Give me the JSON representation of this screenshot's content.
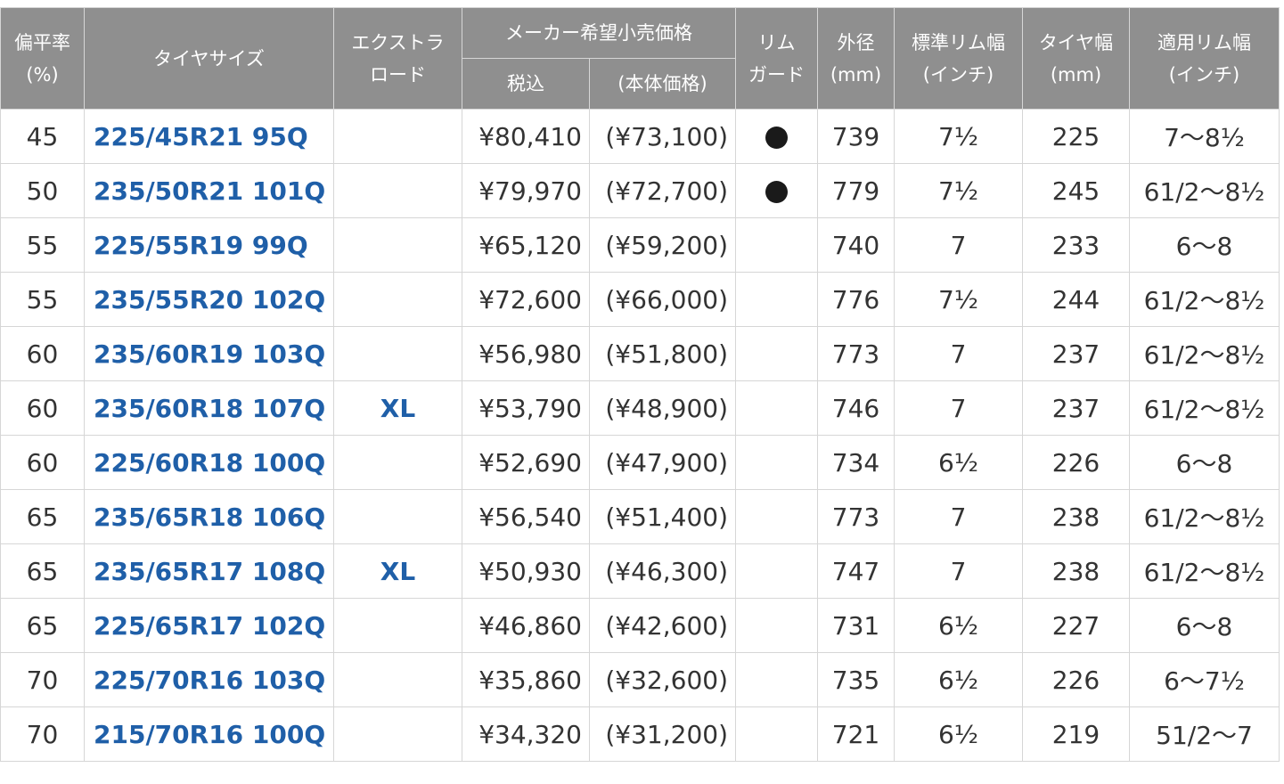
{
  "header": {
    "aspect_ratio": [
      "偏平率",
      "(%)"
    ],
    "tire_size": "タイヤサイズ",
    "extra_load": [
      "エクストラ",
      "ロード"
    ],
    "msrp": "メーカー希望小売価格",
    "tax_incl": "税込",
    "base_price": "(本体価格)",
    "rim_guard": [
      "リム",
      "ガード"
    ],
    "outer_diameter": [
      "外径",
      "(mm)"
    ],
    "std_rim_width": [
      "標準リム幅",
      "(インチ)"
    ],
    "tire_width": [
      "タイヤ幅",
      "(mm)"
    ],
    "applicable_rim_width": [
      "適用リム幅",
      "(インチ)"
    ]
  },
  "rows": [
    {
      "ratio": "45",
      "size": "225/45R21 95Q",
      "xl": "",
      "price": "¥80,410",
      "base": "(¥73,100)",
      "rim_guard": true,
      "diameter": "739",
      "std_rim": "7½",
      "width": "225",
      "rim_range": "7〜8½"
    },
    {
      "ratio": "50",
      "size": "235/50R21 101Q",
      "xl": "",
      "price": "¥79,970",
      "base": "(¥72,700)",
      "rim_guard": true,
      "diameter": "779",
      "std_rim": "7½",
      "width": "245",
      "rim_range": "61/2〜8½"
    },
    {
      "ratio": "55",
      "size": "225/55R19 99Q",
      "xl": "",
      "price": "¥65,120",
      "base": "(¥59,200)",
      "rim_guard": false,
      "diameter": "740",
      "std_rim": "7",
      "width": "233",
      "rim_range": "6〜8"
    },
    {
      "ratio": "55",
      "size": "235/55R20 102Q",
      "xl": "",
      "price": "¥72,600",
      "base": "(¥66,000)",
      "rim_guard": false,
      "diameter": "776",
      "std_rim": "7½",
      "width": "244",
      "rim_range": "61/2〜8½"
    },
    {
      "ratio": "60",
      "size": "235/60R19 103Q",
      "xl": "",
      "price": "¥56,980",
      "base": "(¥51,800)",
      "rim_guard": false,
      "diameter": "773",
      "std_rim": "7",
      "width": "237",
      "rim_range": "61/2〜8½"
    },
    {
      "ratio": "60",
      "size": "235/60R18 107Q",
      "xl": "XL",
      "price": "¥53,790",
      "base": "(¥48,900)",
      "rim_guard": false,
      "diameter": "746",
      "std_rim": "7",
      "width": "237",
      "rim_range": "61/2〜8½"
    },
    {
      "ratio": "60",
      "size": "225/60R18 100Q",
      "xl": "",
      "price": "¥52,690",
      "base": "(¥47,900)",
      "rim_guard": false,
      "diameter": "734",
      "std_rim": "6½",
      "width": "226",
      "rim_range": "6〜8"
    },
    {
      "ratio": "65",
      "size": "235/65R18 106Q",
      "xl": "",
      "price": "¥56,540",
      "base": "(¥51,400)",
      "rim_guard": false,
      "diameter": "773",
      "std_rim": "7",
      "width": "238",
      "rim_range": "61/2〜8½"
    },
    {
      "ratio": "65",
      "size": "235/65R17 108Q",
      "xl": "XL",
      "price": "¥50,930",
      "base": "(¥46,300)",
      "rim_guard": false,
      "diameter": "747",
      "std_rim": "7",
      "width": "238",
      "rim_range": "61/2〜8½"
    },
    {
      "ratio": "65",
      "size": "225/65R17 102Q",
      "xl": "",
      "price": "¥46,860",
      "base": "(¥42,600)",
      "rim_guard": false,
      "diameter": "731",
      "std_rim": "6½",
      "width": "227",
      "rim_range": "6〜8"
    },
    {
      "ratio": "70",
      "size": "225/70R16 103Q",
      "xl": "",
      "price": "¥35,860",
      "base": "(¥32,600)",
      "rim_guard": false,
      "diameter": "735",
      "std_rim": "6½",
      "width": "226",
      "rim_range": "6〜7½"
    },
    {
      "ratio": "70",
      "size": "215/70R16 100Q",
      "xl": "",
      "price": "¥34,320",
      "base": "(¥31,200)",
      "rim_guard": false,
      "diameter": "721",
      "std_rim": "6½",
      "width": "219",
      "rim_range": "51/2〜7"
    }
  ]
}
